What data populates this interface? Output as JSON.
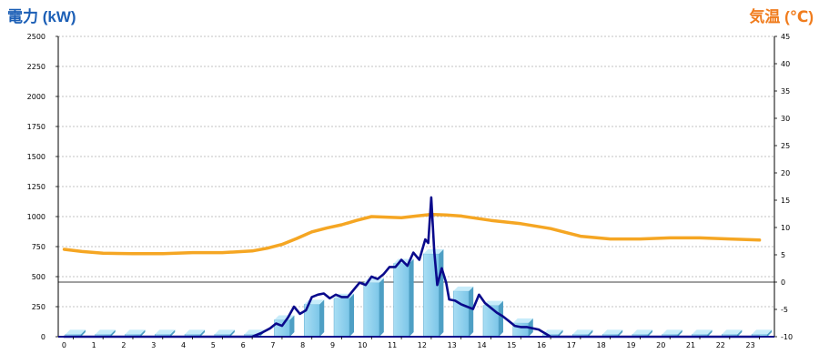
{
  "chart_data": {
    "type": "bar",
    "title_left": "電力 (kW)",
    "title_right": "気温 (℃)",
    "categories": [
      "0",
      "1",
      "2",
      "3",
      "4",
      "5",
      "6",
      "7",
      "8",
      "9",
      "10",
      "11",
      "12",
      "13",
      "14",
      "15",
      "16",
      "17",
      "18",
      "19",
      "20",
      "21",
      "22",
      "23"
    ],
    "y_left": {
      "min": 0,
      "max": 2500,
      "ticks": [
        "0",
        "250",
        "500",
        "750",
        "1000",
        "1250",
        "1500",
        "1750",
        "2000",
        "2250",
        "2500"
      ]
    },
    "y_right": {
      "min": -10,
      "max": 45,
      "ticks": [
        "-10",
        "-5",
        "0",
        "5",
        "10",
        "15",
        "20",
        "25",
        "30",
        "35",
        "40",
        "45"
      ]
    },
    "grid": "horizontal-dashed",
    "series": [
      {
        "kind": "bar",
        "axis": "left",
        "color": "#87ceeb",
        "values": [
          20,
          20,
          20,
          20,
          20,
          20,
          20,
          140,
          270,
          320,
          450,
          610,
          690,
          380,
          260,
          115,
          20,
          20,
          20,
          20,
          20,
          20,
          20,
          20
        ]
      },
      {
        "kind": "line",
        "axis": "right",
        "color": "#f5a623",
        "x": [
          -0.3,
          0.3,
          1,
          2,
          3,
          4,
          5,
          6,
          6.5,
          7,
          7.5,
          8,
          8.5,
          9,
          9.5,
          10,
          10.5,
          11,
          11.5,
          12,
          12.5,
          13,
          13.5,
          14,
          14.5,
          15,
          16,
          17,
          18,
          19,
          20,
          21,
          22,
          23
        ],
        "values": [
          6,
          5.6,
          5.3,
          5.2,
          5.2,
          5.4,
          5.4,
          5.7,
          6.2,
          6.9,
          8,
          9.2,
          9.9,
          10.5,
          11.3,
          12,
          11.9,
          11.8,
          12.1,
          12.4,
          12.3,
          12.1,
          11.7,
          11.3,
          11,
          10.7,
          9.8,
          8.4,
          7.9,
          7.9,
          8.1,
          8.1,
          7.9,
          7.7
        ]
      },
      {
        "kind": "line",
        "axis": "left",
        "color": "#0a0a8c",
        "x": [
          -0.3,
          0,
          1,
          2,
          3,
          4,
          5,
          6,
          6.3,
          6.6,
          6.8,
          7,
          7.2,
          7.4,
          7.6,
          7.8,
          8,
          8.2,
          8.4,
          8.6,
          8.8,
          9,
          9.2,
          9.4,
          9.6,
          9.8,
          10,
          10.2,
          10.4,
          10.6,
          10.8,
          11,
          11.2,
          11.4,
          11.6,
          11.8,
          11.9,
          12,
          12.1,
          12.2,
          12.35,
          12.5,
          12.6,
          12.8,
          13,
          13.2,
          13.4,
          13.6,
          13.8,
          14,
          14.2,
          14.4,
          14.6,
          14.8,
          15,
          15.2,
          15.4,
          15.6,
          15.8,
          16,
          17,
          18,
          19,
          20,
          21,
          22,
          23
        ],
        "values": [
          0,
          0,
          0,
          0,
          0,
          0,
          0,
          0,
          30,
          70,
          110,
          90,
          160,
          250,
          190,
          220,
          330,
          350,
          360,
          320,
          350,
          330,
          330,
          390,
          450,
          430,
          500,
          480,
          520,
          580,
          580,
          640,
          590,
          700,
          640,
          810,
          780,
          1160,
          710,
          430,
          570,
          450,
          310,
          300,
          270,
          250,
          230,
          350,
          280,
          240,
          200,
          170,
          130,
          90,
          80,
          80,
          70,
          60,
          30,
          0,
          0,
          0,
          0,
          0,
          0,
          0,
          0
        ]
      }
    ]
  }
}
